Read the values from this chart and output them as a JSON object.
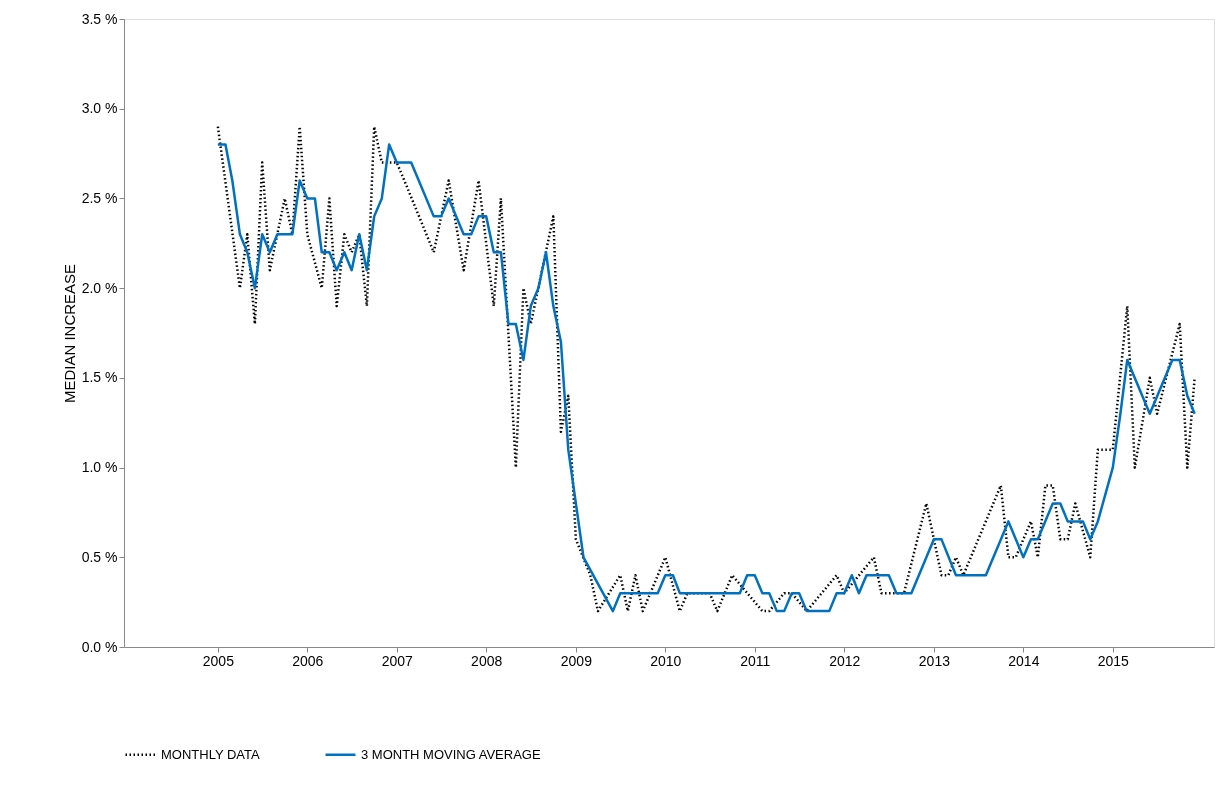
{
  "chart_data": {
    "type": "line",
    "ylabel": "MEDIAN INCREASE",
    "xlim": [
      "2003-12-15",
      "2016-02-18"
    ],
    "xticks": [
      "2005",
      "2006",
      "2007",
      "2008",
      "2009",
      "2010",
      "2011",
      "2012",
      "2013",
      "2014",
      "2015"
    ],
    "ylim": [
      0,
      3.5
    ],
    "yticks": [
      {
        "value": 0,
        "label": "0.0 %"
      },
      {
        "value": 0.5,
        "label": "0.5 %"
      },
      {
        "value": 1,
        "label": "1.0 %"
      },
      {
        "value": 1.5,
        "label": "1.5 %"
      },
      {
        "value": 2,
        "label": "2.0 %"
      },
      {
        "value": 2.5,
        "label": "2.5 %"
      },
      {
        "value": 3,
        "label": "3.0 %"
      },
      {
        "value": 3.5,
        "label": "3.5 %"
      }
    ],
    "grid": false,
    "legend": "bottom",
    "marker": "none",
    "series": [
      {
        "name": "MONTHLY DATA",
        "color": "#000000",
        "line_style": "dotted",
        "x": [
          "2005-01",
          "2005-04",
          "2005-05",
          "2005-06",
          "2005-07",
          "2005-08",
          "2005-10",
          "2005-11",
          "2005-12",
          "2006-01",
          "2006-03",
          "2006-04",
          "2006-05",
          "2006-06",
          "2006-07",
          "2006-08",
          "2006-09",
          "2006-10",
          "2006-11",
          "2007-01",
          "2007-02",
          "2007-06",
          "2007-08",
          "2007-10",
          "2007-12",
          "2008-02",
          "2008-03",
          "2008-05",
          "2008-06",
          "2008-07",
          "2008-10",
          "2008-11",
          "2008-12",
          "2009-01",
          "2009-03",
          "2009-04",
          "2009-07",
          "2009-08",
          "2009-09",
          "2009-10",
          "2010-01",
          "2010-03",
          "2010-04",
          "2010-07",
          "2010-08",
          "2010-10",
          "2011-02",
          "2011-03",
          "2011-05",
          "2011-06",
          "2011-08",
          "2011-12",
          "2012-01",
          "2012-05",
          "2012-06",
          "2012-09",
          "2012-12",
          "2013-02",
          "2013-03",
          "2013-04",
          "2013-05",
          "2013-10",
          "2013-11",
          "2013-12",
          "2014-02",
          "2014-03",
          "2014-04",
          "2014-05",
          "2014-06",
          "2014-07",
          "2014-08",
          "2014-10",
          "2014-11",
          "2015-01",
          "2015-03",
          "2015-04",
          "2015-06",
          "2015-07",
          "2015-10",
          "2015-11",
          "2015-12"
        ],
        "values": [
          2.9,
          2.0,
          2.3,
          1.8,
          2.7,
          2.1,
          2.5,
          2.3,
          2.9,
          2.3,
          2.0,
          2.5,
          1.9,
          2.3,
          2.2,
          2.3,
          1.9,
          2.9,
          2.7,
          2.7,
          2.6,
          2.2,
          2.6,
          2.1,
          2.6,
          1.9,
          2.5,
          1.0,
          2.0,
          1.8,
          2.4,
          1.2,
          1.4,
          0.6,
          0.4,
          0.2,
          0.4,
          0.2,
          0.4,
          0.2,
          0.5,
          0.2,
          0.3,
          0.3,
          0.2,
          0.4,
          0.2,
          0.2,
          0.3,
          0.3,
          0.2,
          0.4,
          0.3,
          0.5,
          0.3,
          0.3,
          0.8,
          0.4,
          0.4,
          0.5,
          0.4,
          0.9,
          0.5,
          0.5,
          0.7,
          0.5,
          0.9,
          0.9,
          0.6,
          0.6,
          0.8,
          0.5,
          1.1,
          1.1,
          1.9,
          1.0,
          1.5,
          1.3,
          1.8,
          1.0,
          1.5
        ]
      },
      {
        "name": "3 MONTH MOVING AVERAGE",
        "color": "#0070c0",
        "line_style": "solid",
        "x": [
          "2005-01",
          "2005-02",
          "2005-03",
          "2005-04",
          "2005-05",
          "2005-06",
          "2005-07",
          "2005-08",
          "2005-09",
          "2005-11",
          "2005-12",
          "2006-01",
          "2006-02",
          "2006-03",
          "2006-04",
          "2006-05",
          "2006-06",
          "2006-07",
          "2006-08",
          "2006-09",
          "2006-10",
          "2006-11",
          "2006-12",
          "2007-01",
          "2007-03",
          "2007-06",
          "2007-07",
          "2007-08",
          "2007-10",
          "2007-11",
          "2007-12",
          "2008-01",
          "2008-02",
          "2008-03",
          "2008-04",
          "2008-05",
          "2008-06",
          "2008-07",
          "2008-08",
          "2008-09",
          "2008-10",
          "2008-11",
          "2008-12",
          "2009-02",
          "2009-06",
          "2009-07",
          "2009-12",
          "2010-01",
          "2010-02",
          "2010-03",
          "2010-11",
          "2010-12",
          "2011-01",
          "2011-02",
          "2011-03",
          "2011-04",
          "2011-05",
          "2011-06",
          "2011-07",
          "2011-08",
          "2011-11",
          "2011-12",
          "2012-01",
          "2012-02",
          "2012-03",
          "2012-04",
          "2012-07",
          "2012-08",
          "2012-10",
          "2013-01",
          "2013-02",
          "2013-04",
          "2013-08",
          "2013-11",
          "2014-01",
          "2014-02",
          "2014-03",
          "2014-05",
          "2014-06",
          "2014-07",
          "2014-09",
          "2014-10",
          "2014-11",
          "2015-01",
          "2015-02",
          "2015-03",
          "2015-06",
          "2015-09",
          "2015-10",
          "2015-11",
          "2015-12"
        ],
        "values": [
          2.8,
          2.8,
          2.6,
          2.3,
          2.2,
          2.0,
          2.3,
          2.2,
          2.3,
          2.3,
          2.6,
          2.5,
          2.5,
          2.2,
          2.2,
          2.1,
          2.2,
          2.1,
          2.3,
          2.1,
          2.4,
          2.5,
          2.8,
          2.7,
          2.7,
          2.4,
          2.4,
          2.5,
          2.3,
          2.3,
          2.4,
          2.4,
          2.2,
          2.2,
          1.8,
          1.8,
          1.6,
          1.9,
          2.0,
          2.2,
          1.9,
          1.7,
          1.1,
          0.5,
          0.2,
          0.3,
          0.3,
          0.4,
          0.4,
          0.3,
          0.3,
          0.4,
          0.4,
          0.3,
          0.3,
          0.2,
          0.2,
          0.3,
          0.3,
          0.2,
          0.2,
          0.3,
          0.3,
          0.4,
          0.3,
          0.4,
          0.4,
          0.3,
          0.3,
          0.6,
          0.6,
          0.4,
          0.4,
          0.7,
          0.5,
          0.6,
          0.6,
          0.8,
          0.8,
          0.7,
          0.7,
          0.6,
          0.7,
          1.0,
          1.3,
          1.6,
          1.3,
          1.6,
          1.6,
          1.4,
          1.3
        ]
      }
    ]
  }
}
